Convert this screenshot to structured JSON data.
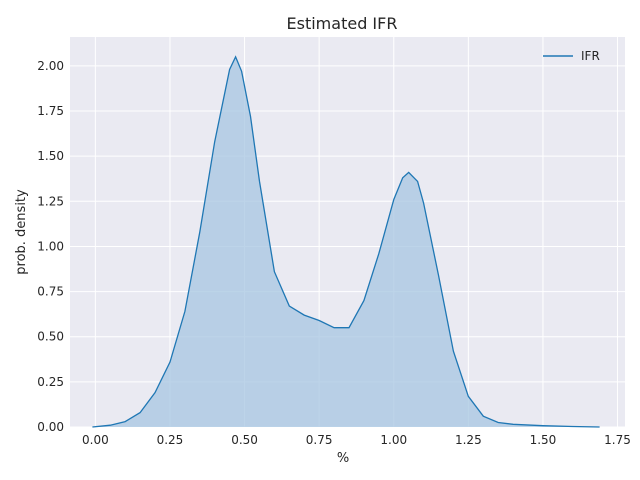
{
  "chart_data": {
    "type": "area",
    "title": "Estimated IFR",
    "xlabel": "%",
    "ylabel": "prob. density",
    "xlim": [
      -0.085,
      1.775
    ],
    "ylim": [
      0,
      2.16
    ],
    "x_ticks": [
      "0.00",
      "0.25",
      "0.50",
      "0.75",
      "1.00",
      "1.25",
      "1.50",
      "1.75"
    ],
    "y_ticks": [
      "0.00",
      "0.25",
      "0.50",
      "0.75",
      "1.00",
      "1.25",
      "1.50",
      "1.75",
      "2.00"
    ],
    "grid": true,
    "legend_position": "top-right",
    "series": [
      {
        "name": "IFR",
        "color": "#1f77b4",
        "fill_color": "#a7c6e1",
        "x": [
          -0.01,
          0.05,
          0.1,
          0.15,
          0.2,
          0.25,
          0.3,
          0.35,
          0.4,
          0.45,
          0.47,
          0.49,
          0.52,
          0.55,
          0.6,
          0.65,
          0.7,
          0.75,
          0.8,
          0.85,
          0.9,
          0.95,
          1.0,
          1.03,
          1.05,
          1.08,
          1.1,
          1.15,
          1.2,
          1.25,
          1.3,
          1.35,
          1.4,
          1.5,
          1.6,
          1.69
        ],
        "y": [
          0.0,
          0.01,
          0.03,
          0.08,
          0.19,
          0.36,
          0.64,
          1.08,
          1.58,
          1.98,
          2.05,
          1.97,
          1.72,
          1.36,
          0.86,
          0.67,
          0.62,
          0.59,
          0.55,
          0.55,
          0.7,
          0.96,
          1.26,
          1.38,
          1.41,
          1.36,
          1.24,
          0.84,
          0.42,
          0.17,
          0.06,
          0.025,
          0.015,
          0.007,
          0.003,
          0.0
        ]
      }
    ]
  }
}
